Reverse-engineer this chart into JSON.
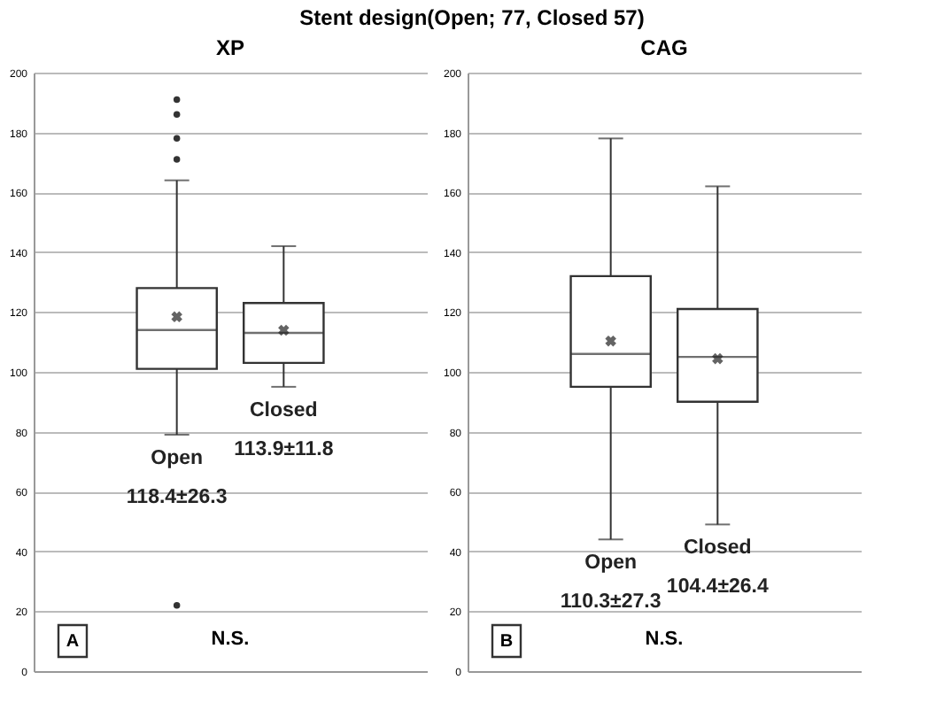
{
  "chart_data": [
    {
      "type": "box",
      "title": "Stent design(Open; 77, Closed 57)",
      "subtitle": "XP",
      "categories": [
        null,
        null
      ],
      "boxes": [
        {
          "low": 79,
          "q1": 101,
          "median": 114,
          "q3": 128,
          "high": 164,
          "mean": 118.4,
          "outliers": [
            191,
            186,
            178,
            171,
            22
          ]
        },
        {
          "low": 95,
          "q1": 103,
          "median": 113,
          "q3": 123,
          "high": 142,
          "mean": 113.9
        }
      ],
      "ylim": [
        0,
        200
      ],
      "yticks": [
        0,
        20,
        40,
        60,
        80,
        100,
        120,
        140,
        160,
        180,
        200
      ],
      "grid": "y",
      "tick_labels": "y",
      "annotations": [
        "Open",
        "118.4±26.3",
        "Closed",
        "113.9±11.8",
        "A",
        "N.S."
      ]
    },
    {
      "type": "box",
      "subtitle": "CAG",
      "categories": [
        null,
        null
      ],
      "boxes": [
        {
          "low": 44,
          "q1": 95,
          "median": 106,
          "q3": 132,
          "high": 178,
          "mean": 110.3
        },
        {
          "low": 49,
          "q1": 90,
          "median": 105,
          "q3": 121,
          "high": 162,
          "mean": 104.4
        }
      ],
      "ylim": [
        0,
        200
      ],
      "yticks": [
        0,
        20,
        40,
        60,
        80,
        100,
        120,
        140,
        160,
        180,
        200
      ],
      "grid": "y",
      "tick_labels": "y",
      "annotations": [
        "Open",
        "110.3±27.3",
        "Closed",
        "104.4±26.4",
        "B",
        "N.S."
      ]
    }
  ]
}
